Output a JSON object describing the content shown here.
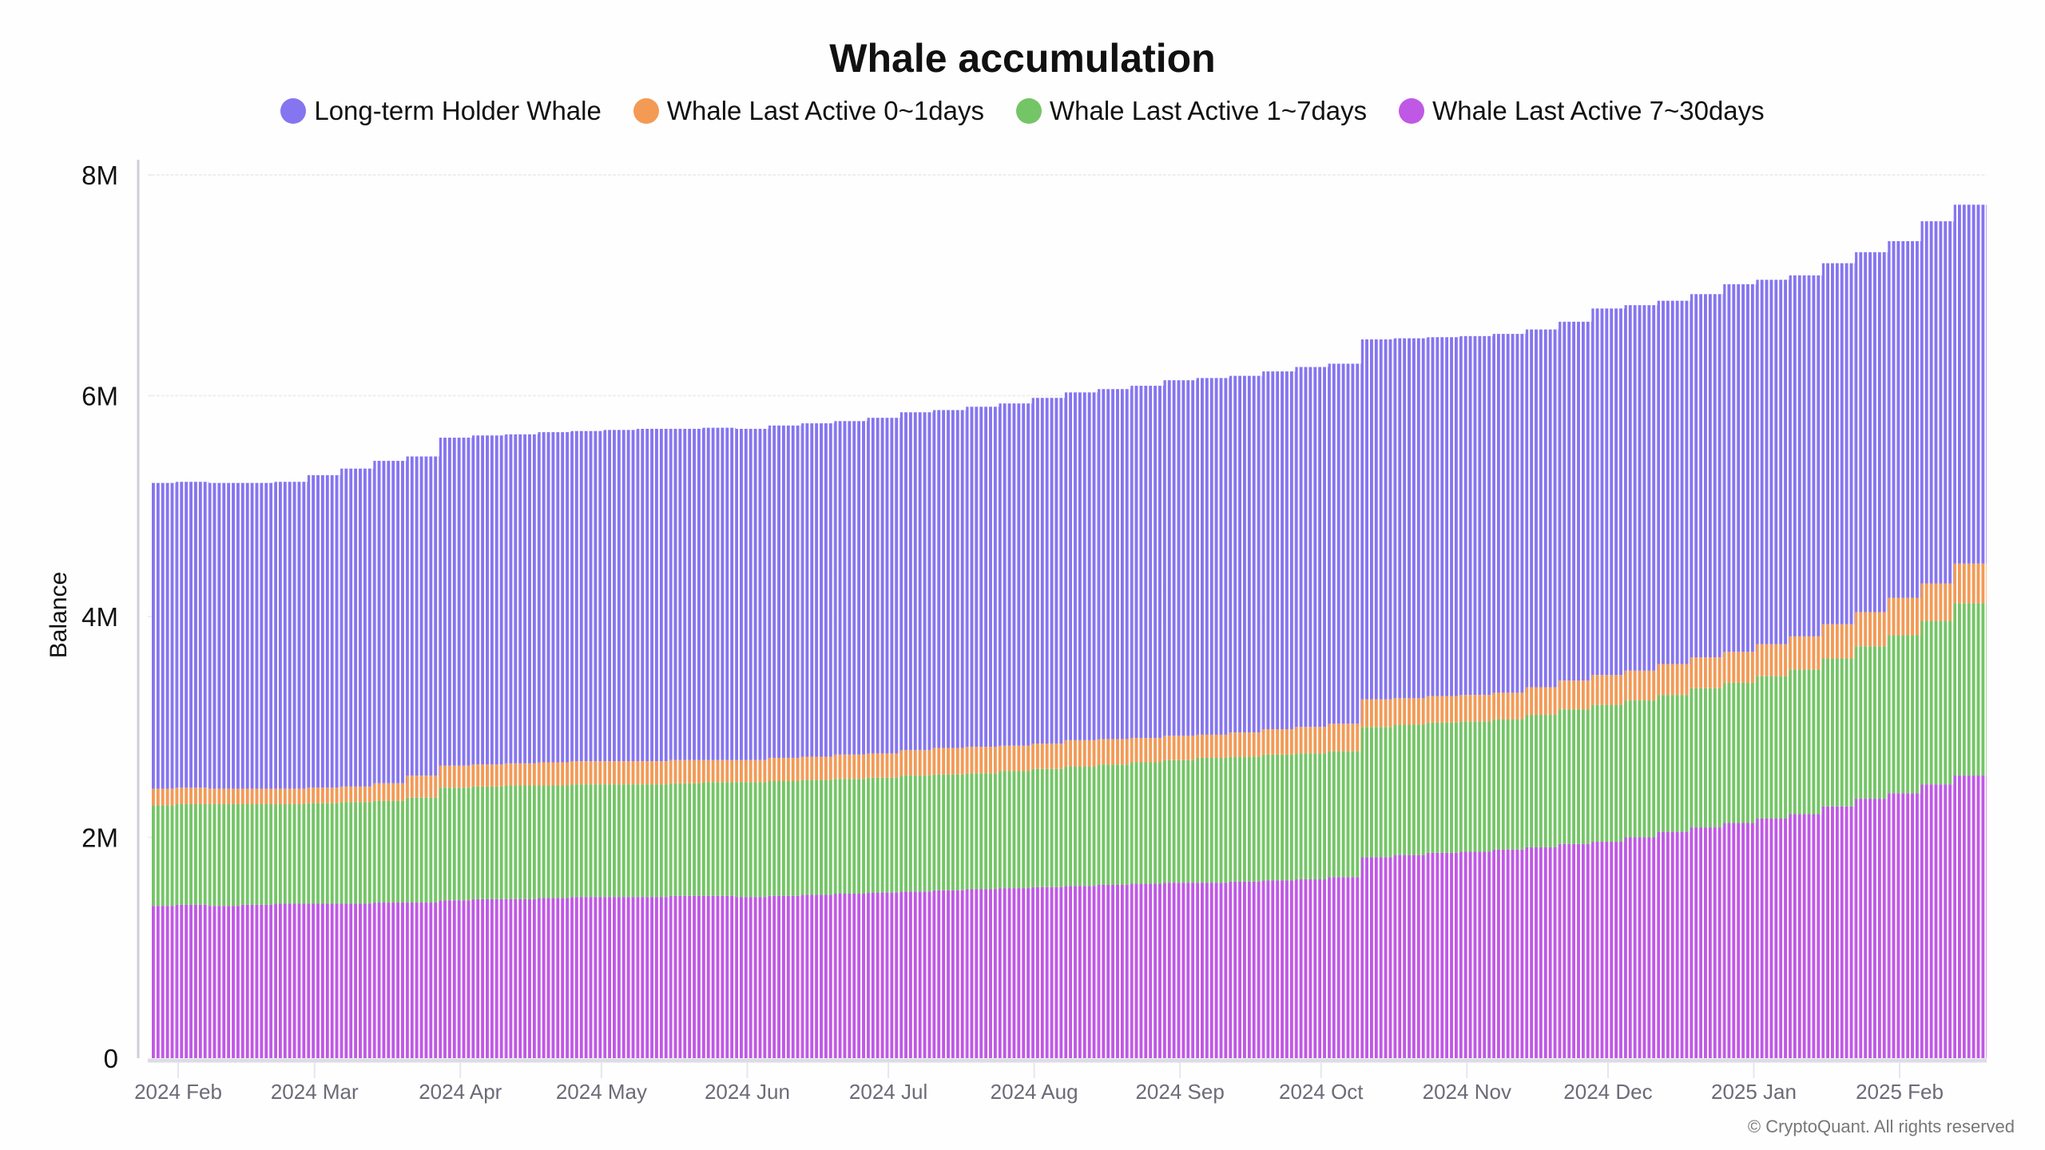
{
  "chart_data": {
    "type": "bar",
    "stacked": true,
    "title": "Whale accumulation",
    "xlabel": "",
    "ylabel": "Balance",
    "ylim": [
      0,
      8
    ],
    "y_unit": "M",
    "yticks": [
      0,
      2,
      4,
      6,
      8
    ],
    "ytick_labels": [
      "0",
      "2M",
      "4M",
      "6M",
      "8M"
    ],
    "xtick_labels": [
      {
        "date": "2024-02-01",
        "label": "2024 Feb"
      },
      {
        "date": "2024-03-01",
        "label": "2024 Mar"
      },
      {
        "date": "2024-04-01",
        "label": "2024 Apr"
      },
      {
        "date": "2024-05-01",
        "label": "2024 May"
      },
      {
        "date": "2024-06-01",
        "label": "2024 Jun"
      },
      {
        "date": "2024-07-01",
        "label": "2024 Jul"
      },
      {
        "date": "2024-08-01",
        "label": "2024 Aug"
      },
      {
        "date": "2024-09-01",
        "label": "2024 Sep"
      },
      {
        "date": "2024-10-01",
        "label": "2024 Oct"
      },
      {
        "date": "2024-11-01",
        "label": "2024 Nov"
      },
      {
        "date": "2024-12-01",
        "label": "2024 Dec"
      },
      {
        "date": "2025-01-01",
        "label": "2025 Jan"
      },
      {
        "date": "2025-02-01",
        "label": "2025 Feb"
      }
    ],
    "xlim": [
      "2024-01-27",
      "2025-02-20"
    ],
    "grid": "horizontal",
    "legend_position": "top",
    "x": [
      "2024-01-31",
      "2024-02-07",
      "2024-02-14",
      "2024-02-21",
      "2024-02-28",
      "2024-03-06",
      "2024-03-13",
      "2024-03-20",
      "2024-03-27",
      "2024-04-03",
      "2024-04-10",
      "2024-04-17",
      "2024-04-24",
      "2024-05-01",
      "2024-05-08",
      "2024-05-15",
      "2024-05-22",
      "2024-05-29",
      "2024-06-05",
      "2024-06-12",
      "2024-06-19",
      "2024-06-26",
      "2024-07-03",
      "2024-07-10",
      "2024-07-17",
      "2024-07-24",
      "2024-07-31",
      "2024-08-07",
      "2024-08-14",
      "2024-08-21",
      "2024-08-28",
      "2024-09-04",
      "2024-09-11",
      "2024-09-18",
      "2024-09-25",
      "2024-10-02",
      "2024-10-09",
      "2024-10-16",
      "2024-10-23",
      "2024-10-30",
      "2024-11-06",
      "2024-11-13",
      "2024-11-20",
      "2024-11-27",
      "2024-12-04",
      "2024-12-11",
      "2024-12-18",
      "2024-12-25",
      "2025-01-01",
      "2025-01-08",
      "2025-01-15",
      "2025-01-22",
      "2025-01-29",
      "2025-02-05",
      "2025-02-12",
      "2025-02-19"
    ],
    "series": [
      {
        "name": "Whale Last Active 7~30days",
        "color": "#c058e6",
        "values": [
          1.38,
          1.39,
          1.38,
          1.39,
          1.4,
          1.4,
          1.4,
          1.41,
          1.41,
          1.43,
          1.44,
          1.44,
          1.45,
          1.46,
          1.46,
          1.46,
          1.47,
          1.47,
          1.46,
          1.47,
          1.48,
          1.49,
          1.5,
          1.51,
          1.52,
          1.53,
          1.54,
          1.55,
          1.56,
          1.57,
          1.58,
          1.59,
          1.59,
          1.6,
          1.61,
          1.62,
          1.64,
          1.82,
          1.84,
          1.86,
          1.87,
          1.89,
          1.91,
          1.94,
          1.96,
          2.0,
          2.05,
          2.09,
          2.13,
          2.17,
          2.21,
          2.28,
          2.35,
          2.4,
          2.48,
          2.56
        ]
      },
      {
        "name": "Whale Last Active 1~7days",
        "color": "#74c566",
        "values": [
          0.91,
          0.91,
          0.92,
          0.91,
          0.9,
          0.91,
          0.92,
          0.92,
          0.95,
          1.02,
          1.02,
          1.03,
          1.02,
          1.02,
          1.02,
          1.02,
          1.02,
          1.03,
          1.04,
          1.04,
          1.04,
          1.04,
          1.04,
          1.05,
          1.05,
          1.05,
          1.06,
          1.07,
          1.08,
          1.09,
          1.1,
          1.11,
          1.13,
          1.13,
          1.14,
          1.14,
          1.14,
          1.18,
          1.18,
          1.18,
          1.18,
          1.18,
          1.2,
          1.22,
          1.24,
          1.24,
          1.24,
          1.26,
          1.27,
          1.29,
          1.31,
          1.34,
          1.38,
          1.43,
          1.48,
          1.56
        ]
      },
      {
        "name": "Whale Last Active 0~1days",
        "color": "#f39a55",
        "values": [
          0.15,
          0.15,
          0.14,
          0.14,
          0.14,
          0.14,
          0.14,
          0.16,
          0.2,
          0.2,
          0.2,
          0.2,
          0.21,
          0.21,
          0.21,
          0.21,
          0.21,
          0.2,
          0.2,
          0.21,
          0.21,
          0.22,
          0.22,
          0.23,
          0.24,
          0.24,
          0.23,
          0.23,
          0.24,
          0.23,
          0.22,
          0.22,
          0.21,
          0.22,
          0.23,
          0.24,
          0.25,
          0.25,
          0.24,
          0.24,
          0.24,
          0.24,
          0.25,
          0.26,
          0.27,
          0.27,
          0.28,
          0.28,
          0.28,
          0.29,
          0.3,
          0.31,
          0.31,
          0.34,
          0.34,
          0.36
        ]
      },
      {
        "name": "Long-term Holder Whale",
        "color": "#8575f0",
        "values": [
          2.77,
          2.77,
          2.77,
          2.77,
          2.78,
          2.83,
          2.88,
          2.92,
          2.89,
          2.97,
          2.98,
          2.98,
          2.99,
          2.99,
          3.0,
          3.01,
          3.0,
          3.01,
          3.0,
          3.01,
          3.02,
          3.02,
          3.04,
          3.06,
          3.06,
          3.08,
          3.1,
          3.13,
          3.15,
          3.17,
          3.19,
          3.22,
          3.23,
          3.23,
          3.24,
          3.26,
          3.26,
          3.26,
          3.26,
          3.25,
          3.25,
          3.25,
          3.24,
          3.25,
          3.32,
          3.31,
          3.29,
          3.29,
          3.33,
          3.3,
          3.27,
          3.27,
          3.26,
          3.23,
          3.28,
          3.25
        ]
      }
    ]
  },
  "legend": [
    {
      "label": "Long-term Holder Whale",
      "color": "#8575f0"
    },
    {
      "label": "Whale Last Active 0~1days",
      "color": "#f39a55"
    },
    {
      "label": "Whale Last Active 1~7days",
      "color": "#74c566"
    },
    {
      "label": "Whale Last Active 7~30days",
      "color": "#c058e6"
    }
  ],
  "watermark": "CryptoQuant",
  "copyright": "© CryptoQuant. All rights reserved"
}
